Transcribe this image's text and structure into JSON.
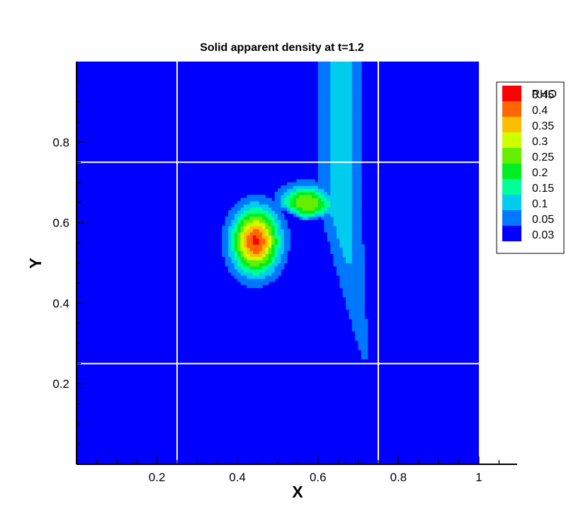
{
  "chart_data": {
    "type": "contour",
    "title": "Solid apparent density at t=1.2",
    "xlabel": "X",
    "ylabel": "Y",
    "xlim": [
      0.0,
      1.0
    ],
    "ylim": [
      0.0,
      1.0
    ],
    "x_ticks": [
      0.2,
      0.4,
      0.6,
      0.8,
      1.0
    ],
    "x_tick_labels": [
      "0.2",
      "0.4",
      "0.6",
      "0.8",
      "1"
    ],
    "y_ticks": [
      0.2,
      0.4,
      0.6,
      0.8
    ],
    "y_tick_labels": [
      "0.2",
      "0.4",
      "0.6",
      "0.8"
    ],
    "legend": {
      "title": "RHO",
      "position": "top-right",
      "levels": [
        {
          "label": "0.45",
          "value": 0.45,
          "color": "#ff0000"
        },
        {
          "label": "0.4",
          "value": 0.4,
          "color": "#ff6600"
        },
        {
          "label": "0.35",
          "value": 0.35,
          "color": "#ffbf00"
        },
        {
          "label": "0.3",
          "value": 0.3,
          "color": "#ccff00"
        },
        {
          "label": "0.25",
          "value": 0.25,
          "color": "#66ee00"
        },
        {
          "label": "0.2",
          "value": 0.2,
          "color": "#00ee22"
        },
        {
          "label": "0.15",
          "value": 0.15,
          "color": "#00ff99"
        },
        {
          "label": "0.1",
          "value": 0.1,
          "color": "#00ccee"
        },
        {
          "label": "0.05",
          "value": 0.05,
          "color": "#0077ff"
        },
        {
          "label": "0.03",
          "value": 0.03,
          "color": "#0000ff"
        }
      ]
    },
    "background_color": "#0000ff",
    "grid_lines_x": [
      0.25,
      0.75
    ],
    "grid_lines_y": [
      0.25,
      0.75
    ],
    "field": {
      "peak_value": 0.46,
      "peak_x": 0.445,
      "peak_y": 0.555,
      "tail_end_x": 0.715,
      "tail_end_y": 0.265
    }
  }
}
